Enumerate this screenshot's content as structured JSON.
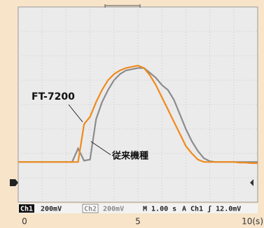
{
  "chart_data": {
    "type": "line",
    "x": [
      0,
      0.25,
      0.5,
      0.75,
      1,
      1.25,
      1.5,
      1.75,
      2,
      2.25,
      2.5,
      2.75,
      3,
      3.25,
      3.5,
      3.75,
      4,
      4.25,
      4.5,
      4.75,
      5,
      5.25,
      5.5,
      5.75,
      6,
      6.25,
      6.5,
      6.75,
      7,
      7.25,
      7.5,
      7.75,
      8,
      8.25,
      8.5,
      8.75,
      9,
      9.25,
      9.5,
      9.75,
      10
    ],
    "series": [
      {
        "name": "FT-7200",
        "color": "#f08a1c",
        "values": [
          1.65,
          1.65,
          1.65,
          1.65,
          1.65,
          1.65,
          1.65,
          1.65,
          1.65,
          1.65,
          1.65,
          3.2,
          3.5,
          4.1,
          4.6,
          5.0,
          5.25,
          5.4,
          5.5,
          5.55,
          5.6,
          5.5,
          5.2,
          4.8,
          4.3,
          3.8,
          3.3,
          2.8,
          2.3,
          2.0,
          1.75,
          1.65,
          1.65,
          1.65,
          1.65,
          1.65,
          1.65,
          1.62,
          1.62,
          1.6,
          1.6
        ]
      },
      {
        "name": "従来機種",
        "color": "#8c8c8c",
        "values": [
          1.65,
          1.65,
          1.65,
          1.65,
          1.65,
          1.65,
          1.65,
          1.65,
          1.65,
          1.65,
          2.2,
          1.7,
          1.75,
          3.4,
          4.1,
          4.6,
          5.0,
          5.25,
          5.4,
          5.45,
          5.5,
          5.5,
          5.3,
          5.1,
          4.8,
          4.6,
          4.2,
          3.6,
          3.0,
          2.5,
          2.1,
          1.8,
          1.68,
          1.65,
          1.65,
          1.65,
          1.65,
          1.65,
          1.65,
          1.65,
          1.65
        ]
      }
    ],
    "xlim": [
      0,
      10
    ],
    "xticks": [
      0,
      5,
      {
        "value": 10,
        "label": "10(s)"
      }
    ],
    "ylim": [
      0,
      8
    ],
    "grid": true,
    "status": [
      "Ch1",
      "200mV",
      "Ch2",
      "200mV",
      "M 1.00 s",
      "A Ch1 ʃ 12.0mV"
    ]
  }
}
